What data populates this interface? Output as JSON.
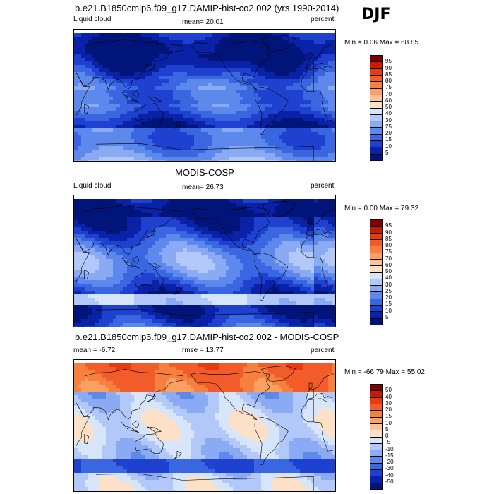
{
  "season": "DJF",
  "panels": [
    {
      "title": "b.e21.B1850cmip6.f09_g17.DAMIP-hist-co2.002 (yrs 1990-2014)",
      "left_label": "Liquid cloud",
      "center_label": "mean=  20.01",
      "right_label": "percent",
      "minmax": "Min =  0.06 Max =  68.85",
      "field": "model",
      "colorbar": {
        "labels": [
          "95",
          "90",
          "85",
          "80",
          "75",
          "70",
          "60",
          "50",
          "40",
          "30",
          "25",
          "20",
          "15",
          "10",
          "5"
        ],
        "colors": [
          "#800000",
          "#cc1a00",
          "#e63a10",
          "#f25c2b",
          "#f7803f",
          "#fba064",
          "#fcc09a",
          "#fde0c8",
          "#d7e5fb",
          "#b1c8f8",
          "#8aaaf3",
          "#5e89ec",
          "#3a66e2",
          "#1e42cf",
          "#0a22a8",
          "#00147a"
        ]
      }
    },
    {
      "title": "MODIS-COSP",
      "left_label": "Liquid cloud",
      "center_label": "mean=  26.73",
      "right_label": "percent",
      "minmax": "Min =  0.00 Max =  79.32",
      "field": "obs",
      "colorbar": {
        "labels": [
          "95",
          "90",
          "85",
          "80",
          "75",
          "70",
          "60",
          "50",
          "40",
          "30",
          "25",
          "20",
          "15",
          "10",
          "5"
        ],
        "colors": [
          "#800000",
          "#cc1a00",
          "#e63a10",
          "#f25c2b",
          "#f7803f",
          "#fba064",
          "#fcc09a",
          "#fde0c8",
          "#d7e5fb",
          "#b1c8f8",
          "#8aaaf3",
          "#5e89ec",
          "#3a66e2",
          "#1e42cf",
          "#0a22a8",
          "#00147a"
        ]
      }
    },
    {
      "title": "b.e21.B1850cmip6.f09_g17.DAMIP-hist-co2.002 - MODIS-COSP",
      "left_label": "mean = -6.72",
      "center_label": "rmse =  13.77",
      "right_label": "percent",
      "minmax": "Min = -66.79 Max =  55.02",
      "field": "diff",
      "colorbar": {
        "labels": [
          "50",
          "40",
          "30",
          "20",
          "15",
          "10",
          "5",
          "0",
          "-5",
          "-10",
          "-15",
          "-20",
          "-30",
          "-40",
          "-50"
        ],
        "colors": [
          "#800000",
          "#cc1a00",
          "#e63a10",
          "#f25c2b",
          "#f7803f",
          "#fba064",
          "#fcc09a",
          "#fde0c8",
          "#d7e5fb",
          "#b1c8f8",
          "#8aaaf3",
          "#5e89ec",
          "#3a66e2",
          "#1e42cf",
          "#0a22a8",
          "#00147a"
        ]
      }
    }
  ]
}
